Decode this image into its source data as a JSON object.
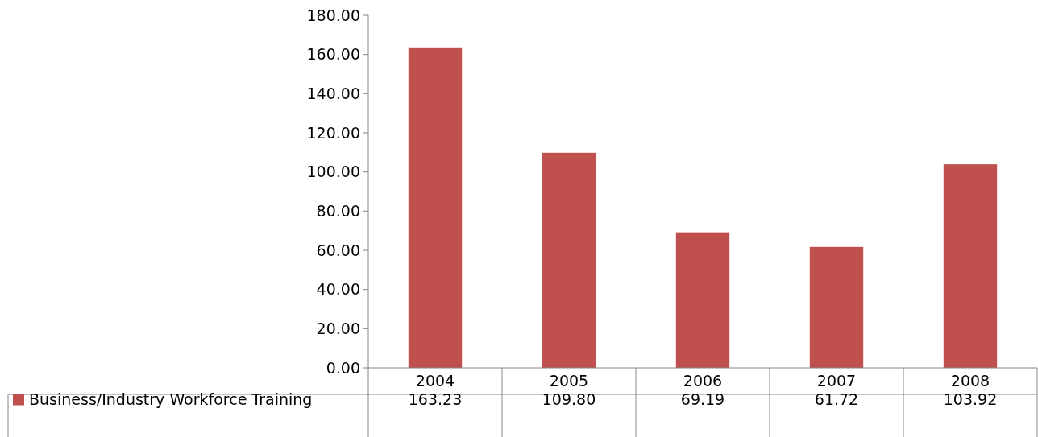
{
  "chart_data": {
    "type": "bar",
    "categories": [
      "2004",
      "2005",
      "2006",
      "2007",
      "2008"
    ],
    "series": [
      {
        "name": "Business/Industry Workforce  Training",
        "color": "#c0504d",
        "values": [
          163.23,
          109.8,
          69.19,
          61.72,
          103.92
        ],
        "value_labels": [
          "163.23",
          "109.80",
          "69.19",
          "61.72",
          "103.92"
        ]
      }
    ],
    "ylim": [
      0,
      180
    ],
    "yticks": [
      {
        "value": 0,
        "label": "0.00"
      },
      {
        "value": 20,
        "label": "20.00"
      },
      {
        "value": 40,
        "label": "40.00"
      },
      {
        "value": 60,
        "label": "60.00"
      },
      {
        "value": 80,
        "label": "80.00"
      },
      {
        "value": 100,
        "label": "100.00"
      },
      {
        "value": 120,
        "label": "120.00"
      },
      {
        "value": 140,
        "label": "140.00"
      },
      {
        "value": 160,
        "label": "160.00"
      },
      {
        "value": 180,
        "label": "180.00"
      }
    ],
    "grid": false,
    "legend": "bottom"
  }
}
